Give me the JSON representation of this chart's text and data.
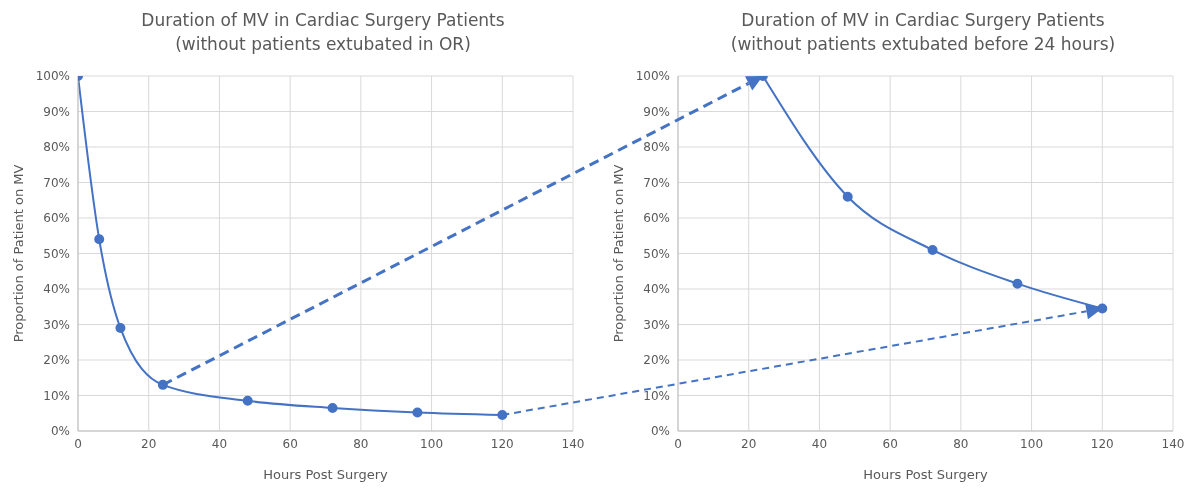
{
  "chart_data": [
    {
      "type": "line",
      "title": "Duration of MV in Cardiac Surgery Patients",
      "subtitle": "(without patients extubated in OR)",
      "xlabel": "Hours Post Surgery",
      "ylabel": "Proportion of Patient on MV",
      "series": [
        {
          "color": "#4472c4",
          "x": [
            0,
            6,
            12,
            24,
            48,
            72,
            96,
            120
          ],
          "values": [
            100,
            54,
            29,
            13,
            8.5,
            6.5,
            5.2,
            4.5
          ]
        }
      ],
      "xlim": [
        0,
        140
      ],
      "xticks": [
        0,
        20,
        40,
        60,
        80,
        100,
        120,
        140
      ],
      "ylim": [
        0,
        100
      ],
      "yticks": [
        {
          "value": 0,
          "label": "0%"
        },
        {
          "value": 10,
          "label": "10%"
        },
        {
          "value": 20,
          "label": "20%"
        },
        {
          "value": 30,
          "label": "30%"
        },
        {
          "value": 40,
          "label": "40%"
        },
        {
          "value": 50,
          "label": "50%"
        },
        {
          "value": 60,
          "label": "60%"
        },
        {
          "value": 70,
          "label": "70%"
        },
        {
          "value": 80,
          "label": "80%"
        },
        {
          "value": 90,
          "label": "90%"
        },
        {
          "value": 100,
          "label": "100%"
        }
      ],
      "grid": true,
      "marker": "circle",
      "line_style": "solid"
    },
    {
      "type": "line",
      "title": "Duration of MV in Cardiac Surgery Patients",
      "subtitle": "(without patients extubated before 24 hours)",
      "xlabel": "Hours Post Surgery",
      "ylabel": "Proportion of Patient on MV",
      "series": [
        {
          "color": "#4472c4",
          "x": [
            24,
            48,
            72,
            96,
            120
          ],
          "values": [
            100,
            66,
            51,
            41.5,
            34.5
          ]
        }
      ],
      "xlim": [
        0,
        140
      ],
      "xticks": [
        0,
        20,
        40,
        60,
        80,
        100,
        120,
        140
      ],
      "ylim": [
        0,
        100
      ],
      "yticks": [
        {
          "value": 0,
          "label": "0%"
        },
        {
          "value": 10,
          "label": "10%"
        },
        {
          "value": 20,
          "label": "20%"
        },
        {
          "value": 30,
          "label": "30%"
        },
        {
          "value": 40,
          "label": "40%"
        },
        {
          "value": 50,
          "label": "50%"
        },
        {
          "value": 60,
          "label": "60%"
        },
        {
          "value": 70,
          "label": "70%"
        },
        {
          "value": 80,
          "label": "80%"
        },
        {
          "value": 90,
          "label": "90%"
        },
        {
          "value": 100,
          "label": "100%"
        }
      ],
      "grid": true,
      "marker": "circle",
      "line_style": "solid"
    }
  ]
}
